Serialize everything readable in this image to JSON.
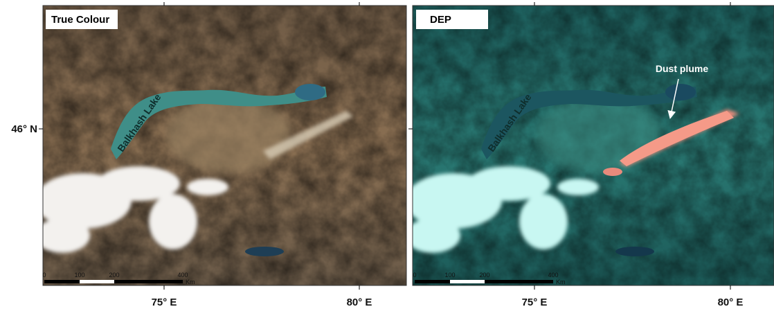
{
  "y_label": "46° N",
  "panels": [
    {
      "title": "True Colour",
      "lake_label": "Balkhash Lake",
      "scale_labels": [
        "0",
        "100",
        "200",
        "400"
      ],
      "scale_unit": "Km",
      "x_labels": [
        "75° E",
        "80° E"
      ]
    },
    {
      "title": "DEP",
      "annotation": "Dust plume",
      "lake_label": "Balkhash Lake",
      "scale_labels": [
        "0",
        "100",
        "200",
        "400"
      ],
      "scale_unit": "Km",
      "x_labels": [
        "75° E",
        "80° E"
      ]
    }
  ]
}
